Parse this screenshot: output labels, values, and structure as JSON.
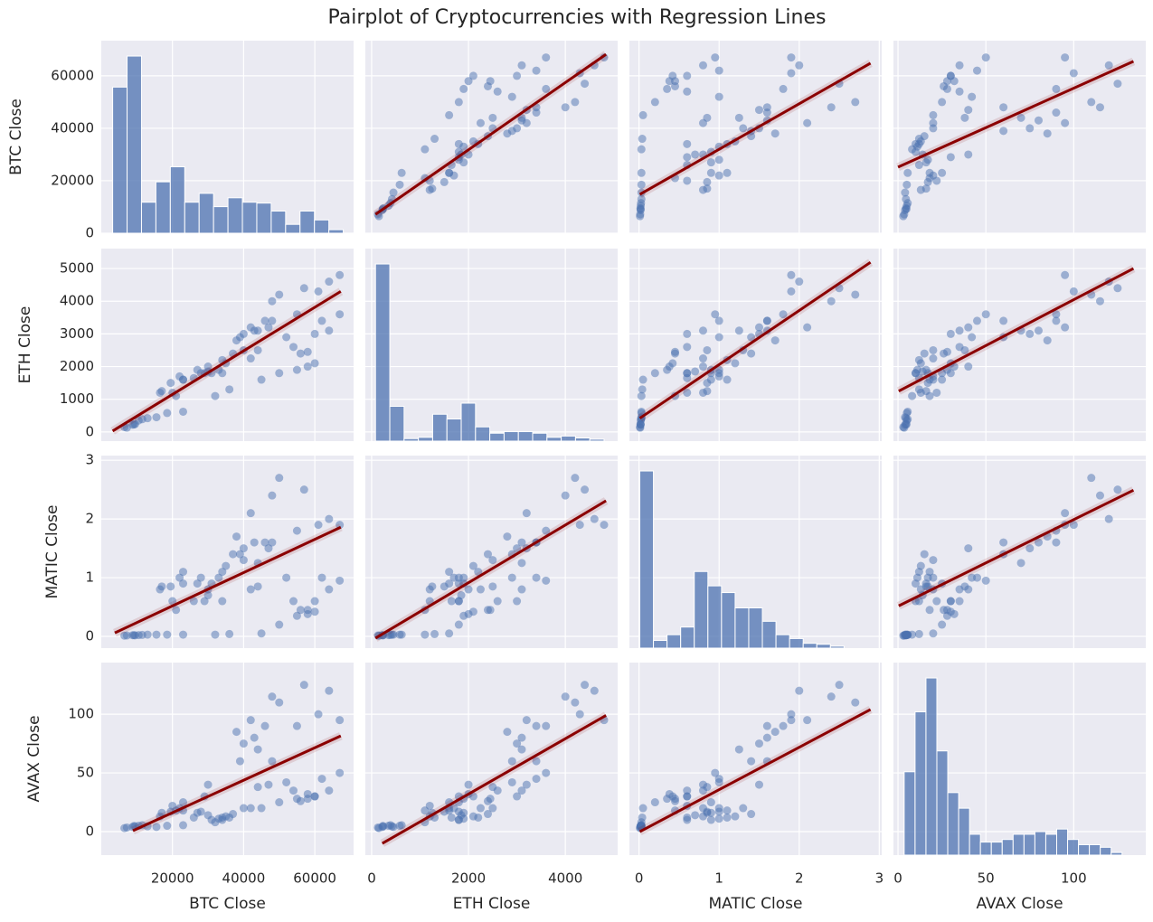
{
  "chart_data": {
    "type": "pairplot",
    "title": "Pairplot of Cryptocurrencies with Regression Lines",
    "grid": true,
    "point_color": "#4c72b0",
    "hist_color": "#4c72b0",
    "line_color": "#8b0000",
    "variables": [
      {
        "name": "BTC Close",
        "xlim": [
          0,
          70900
        ],
        "ylim": [
          0,
          73400
        ],
        "xticks": [
          20000,
          40000,
          60000
        ],
        "yticks": [
          0,
          20000,
          40000,
          60000
        ],
        "hist": {
          "bins": [
            3200,
            7250,
            11300,
            15350,
            19400,
            23450,
            27500,
            31550,
            35600,
            39650,
            43700,
            47750,
            51800,
            55850,
            59900,
            63950,
            68000
          ],
          "counts": [
            165,
            200,
            35,
            58,
            75,
            35,
            45,
            30,
            40,
            35,
            34,
            25,
            10,
            25,
            15,
            4
          ]
        }
      },
      {
        "name": "ETH Close",
        "xlim": [
          -130,
          5080
        ],
        "ylim": [
          -280,
          5610
        ],
        "xticks": [
          0,
          2000,
          4000
        ],
        "yticks": [
          0,
          1000,
          2000,
          3000,
          4000,
          5000
        ],
        "hist": {
          "bins": [
            80,
            375,
            670,
            965,
            1260,
            1555,
            1850,
            2145,
            2440,
            2735,
            3030,
            3325,
            3620,
            3915,
            4210,
            4505,
            4800
          ],
          "counts": [
            560,
            110,
            8,
            12,
            85,
            70,
            120,
            45,
            25,
            30,
            30,
            25,
            12,
            16,
            10,
            6
          ]
        }
      },
      {
        "name": "MATIC Close",
        "xlim": [
          -0.12,
          3.03
        ],
        "ylim": [
          -0.2,
          3.08
        ],
        "xticks": [
          0,
          1,
          2,
          3
        ],
        "yticks": [
          0,
          1,
          2,
          3
        ],
        "hist": {
          "bins": [
            0.01,
            0.18,
            0.35,
            0.52,
            0.69,
            0.86,
            1.03,
            1.2,
            1.37,
            1.54,
            1.71,
            1.88,
            2.05,
            2.22,
            2.39,
            2.56
          ],
          "counts": [
            185,
            8,
            14,
            22,
            80,
            65,
            58,
            42,
            42,
            28,
            14,
            10,
            5,
            4,
            2
          ]
        }
      },
      {
        "name": "AVAX Close",
        "xlim": [
          -2.6,
          141
        ],
        "ylim": [
          -20,
          144
        ],
        "xticks": [
          0,
          50,
          100
        ],
        "yticks": [
          0,
          50,
          100
        ],
        "hist": {
          "bins": [
            3.5,
            9.7,
            15.9,
            22.1,
            28.3,
            34.5,
            40.7,
            46.9,
            53.1,
            59.3,
            65.5,
            71.7,
            77.9,
            84.1,
            90.3,
            96.5,
            102.7,
            108.9,
            115.1,
            121.3,
            127.5
          ],
          "counts": [
            32,
            55,
            68,
            40,
            24,
            18,
            8,
            5,
            5,
            6,
            8,
            8,
            9,
            8,
            10,
            6,
            4,
            4,
            3,
            1
          ]
        }
      }
    ],
    "rows": [
      [
        7200,
        130,
        0.015,
        3.5
      ],
      [
        8800,
        220,
        0.02,
        4
      ],
      [
        9500,
        240,
        0.018,
        4.5
      ],
      [
        6500,
        150,
        0.012,
        3
      ],
      [
        9200,
        230,
        0.02,
        4.8
      ],
      [
        10500,
        350,
        0.022,
        5
      ],
      [
        11500,
        390,
        0.025,
        5.5
      ],
      [
        13000,
        420,
        0.03,
        4.5
      ],
      [
        15500,
        450,
        0.03,
        4
      ],
      [
        18500,
        580,
        0.03,
        5
      ],
      [
        23000,
        620,
        0.03,
        5.5
      ],
      [
        32000,
        1100,
        0.03,
        8
      ],
      [
        36000,
        1300,
        0.04,
        12
      ],
      [
        45000,
        1600,
        0.05,
        20
      ],
      [
        50000,
        1800,
        0.2,
        25
      ],
      [
        55000,
        1900,
        0.35,
        28
      ],
      [
        58000,
        2000,
        0.38,
        32
      ],
      [
        60000,
        2100,
        0.42,
        30
      ],
      [
        56000,
        2400,
        0.45,
        26
      ],
      [
        54000,
        2600,
        0.6,
        35
      ],
      [
        37000,
        2400,
        1.4,
        15
      ],
      [
        35000,
        2100,
        1.2,
        13
      ],
      [
        33000,
        1900,
        1.0,
        11
      ],
      [
        31000,
        1800,
        0.9,
        10
      ],
      [
        34000,
        2200,
        1.1,
        12
      ],
      [
        40000,
        2500,
        1.3,
        20
      ],
      [
        47000,
        3200,
        1.5,
        40
      ],
      [
        48000,
        3400,
        1.6,
        60
      ],
      [
        44000,
        3100,
        1.25,
        70
      ],
      [
        55000,
        3600,
        1.8,
        90
      ],
      [
        61000,
        4300,
        1.9,
        100
      ],
      [
        64000,
        4600,
        2.0,
        120
      ],
      [
        67000,
        4800,
        1.9,
        95
      ],
      [
        57000,
        4400,
        2.5,
        125
      ],
      [
        50000,
        4200,
        2.7,
        110
      ],
      [
        48000,
        4000,
        2.4,
        115
      ],
      [
        42000,
        3200,
        2.1,
        95
      ],
      [
        38000,
        2800,
        1.7,
        85
      ],
      [
        43000,
        3100,
        1.6,
        80
      ],
      [
        46000,
        3400,
        1.6,
        90
      ],
      [
        40000,
        3000,
        1.5,
        75
      ],
      [
        39000,
        2900,
        1.4,
        60
      ],
      [
        30000,
        2000,
        0.8,
        40
      ],
      [
        29000,
        1800,
        0.6,
        30
      ],
      [
        21000,
        1100,
        0.45,
        18
      ],
      [
        20000,
        1200,
        0.6,
        22
      ],
      [
        23000,
        1600,
        0.9,
        25
      ],
      [
        22000,
        1700,
        1.0,
        20
      ],
      [
        19500,
        1500,
        0.85,
        17
      ],
      [
        17000,
        1250,
        0.85,
        16
      ],
      [
        16500,
        1200,
        0.8,
        13
      ],
      [
        23000,
        1600,
        1.1,
        18
      ],
      [
        28000,
        1800,
        1.0,
        17
      ],
      [
        27000,
        1900,
        0.9,
        16
      ],
      [
        30000,
        1850,
        0.7,
        14
      ],
      [
        26000,
        1650,
        0.6,
        12
      ],
      [
        34000,
        1800,
        0.6,
        10
      ],
      [
        42000,
        2250,
        0.8,
        20
      ],
      [
        44000,
        2500,
        0.85,
        38
      ],
      [
        52000,
        2900,
        1.0,
        42
      ],
      [
        62000,
        3400,
        1.0,
        45
      ],
      [
        67000,
        3600,
        0.95,
        50
      ],
      [
        64000,
        3100,
        0.8,
        35
      ],
      [
        60000,
        3000,
        0.6,
        30
      ],
      [
        58000,
        2450,
        0.45,
        28
      ]
    ],
    "regression": [
      [
        null,
        {
          "x": [
            80,
            4840
          ],
          "y": [
            7200,
            68200
          ]
        },
        {
          "x": [
            0.01,
            2.89
          ],
          "y": [
            14800,
            64800
          ]
        },
        {
          "x": [
            0,
            134
          ],
          "y": [
            25200,
            65500
          ]
        }
      ],
      [
        {
          "x": [
            3200,
            67300
          ],
          "y": [
            30,
            4300
          ]
        },
        null,
        {
          "x": [
            0.01,
            2.89
          ],
          "y": [
            420,
            5190
          ]
        },
        {
          "x": [
            0.4,
            134
          ],
          "y": [
            1250,
            5000
          ]
        }
      ],
      [
        {
          "x": [
            3800,
            67300
          ],
          "y": [
            0.06,
            1.86
          ]
        },
        {
          "x": [
            80,
            4840
          ],
          "y": [
            -0.03,
            2.31
          ]
        },
        null,
        {
          "x": [
            0.4,
            134
          ],
          "y": [
            0.52,
            2.49
          ]
        }
      ],
      [
        {
          "x": [
            8900,
            67300
          ],
          "y": [
            0.8,
            81.5
          ]
        },
        {
          "x": [
            220,
            4840
          ],
          "y": [
            -10,
            99
          ]
        },
        {
          "x": [
            0.01,
            2.89
          ],
          "y": [
            0,
            104
          ]
        },
        null
      ]
    ]
  }
}
